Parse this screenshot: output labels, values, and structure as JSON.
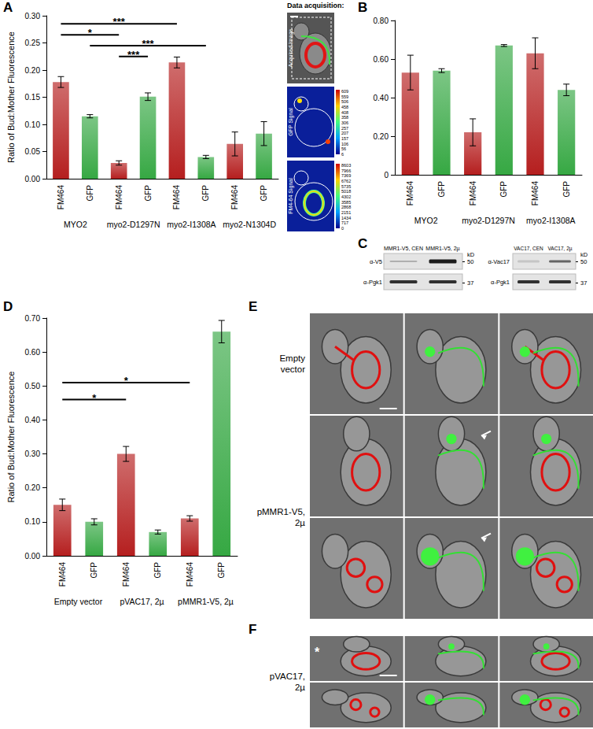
{
  "chart_data": [
    {
      "panel_label": "A",
      "type": "bar",
      "y_label": "Ratio of Bud:Mother Fluorescence",
      "categories": [
        "FM464",
        "GFP",
        "FM464",
        "GFP",
        "FM464",
        "GFP",
        "FM464",
        "GFP"
      ],
      "groups": [
        "MYO2",
        "myo2-D1297N",
        "myo2-I1308A",
        "myo2-N1304D"
      ],
      "values": [
        0.178,
        0.115,
        0.029,
        0.151,
        0.214,
        0.04,
        0.064,
        0.083
      ],
      "errors": [
        0.01,
        0.003,
        0.004,
        0.007,
        0.01,
        0.003,
        0.022,
        0.022
      ],
      "colors": [
        "#b51f1f",
        "#36a843",
        "#b51f1f",
        "#36a843",
        "#b51f1f",
        "#36a843",
        "#b51f1f",
        "#36a843"
      ],
      "ylim": [
        0,
        0.3
      ],
      "yticks": [
        {
          "value": 0,
          "label": "0.00"
        },
        0.05,
        {
          "value": 0.1,
          "label": "0.10"
        },
        0.15,
        {
          "value": 0.2,
          "label": "0.20"
        },
        0.25,
        {
          "value": 0.3,
          "label": "0.30"
        }
      ],
      "grid": false,
      "significance": [
        {
          "text": "***",
          "from": 0,
          "to": 4,
          "y": 0.285
        },
        {
          "text": "*",
          "from": 0,
          "to": 2,
          "y": 0.265
        },
        {
          "text": "***",
          "from": 1,
          "to": 5,
          "y": 0.245
        },
        {
          "text": "***",
          "from": 2,
          "to": 3,
          "y": 0.225
        }
      ]
    },
    {
      "panel_label": "B",
      "type": "bar",
      "categories": [
        "FM464",
        "GFP",
        "FM464",
        "GFP",
        "FM464",
        "GFP"
      ],
      "groups": [
        "MYO2",
        "myo2-D1297N",
        "myo2-I1308A"
      ],
      "values": [
        0.53,
        0.54,
        0.22,
        0.67,
        0.63,
        0.44
      ],
      "errors": [
        0.09,
        0.01,
        0.07,
        0.005,
        0.08,
        0.03
      ],
      "colors": [
        "#b51f1f",
        "#36a843",
        "#b51f1f",
        "#36a843",
        "#b51f1f",
        "#36a843"
      ],
      "ylim": [
        0,
        0.8
      ],
      "yticks": [
        0,
        {
          "value": 0.2,
          "label": "0.20"
        },
        {
          "value": 0.4,
          "label": "0.40"
        },
        {
          "value": 0.6,
          "label": "0.60"
        },
        {
          "value": 0.8,
          "label": "0.80"
        }
      ],
      "grid": false
    },
    {
      "panel_label": "D",
      "type": "bar",
      "y_label": "Ratio of Bud:Mother Fluorescence",
      "categories": [
        "FM464",
        "GFP",
        "FM464",
        "GFP",
        "FM464",
        "GFP"
      ],
      "groups": [
        "Empty vector",
        "pVAC17, 2µ",
        "pMMR1-V5, 2µ"
      ],
      "values": [
        0.15,
        0.1,
        0.3,
        0.07,
        0.11,
        0.66
      ],
      "errors": [
        0.017,
        0.009,
        0.022,
        0.006,
        0.008,
        0.033
      ],
      "colors": [
        "#b51f1f",
        "#36a843",
        "#b51f1f",
        "#36a843",
        "#b51f1f",
        "#36a843"
      ],
      "ylim": [
        0,
        0.7
      ],
      "yticks": [
        {
          "value": 0,
          "label": "0.00"
        },
        {
          "value": 0.1,
          "label": "0.10"
        },
        {
          "value": 0.2,
          "label": "0.20"
        },
        {
          "value": 0.3,
          "label": "0.30"
        },
        {
          "value": 0.4,
          "label": "0.40"
        },
        {
          "value": 0.5,
          "label": "0.50"
        },
        {
          "value": 0.6,
          "label": "0.60"
        },
        {
          "value": 0.7,
          "label": "0.70"
        }
      ],
      "grid": false,
      "significance": [
        {
          "text": "*",
          "from": 0,
          "to": 4,
          "y": 0.51
        },
        {
          "text": "*",
          "from": 0,
          "to": 2,
          "y": 0.46
        }
      ]
    }
  ],
  "data_acquisition": {
    "title": "Data acquisition:",
    "tiles": [
      "Acquired Image",
      "GFP Signal",
      "FM4-64 Signal"
    ],
    "colorbar_ticks": [
      [
        609,
        559,
        506,
        458,
        408,
        358,
        306,
        257,
        207,
        157,
        106,
        56,
        6
      ],
      [
        8603,
        7966,
        7369,
        6762,
        5735,
        5018,
        4302,
        3585,
        2868,
        2151,
        1434,
        717,
        0
      ]
    ]
  },
  "blots": {
    "panel_label": "C",
    "blots": [
      {
        "lanes": [
          "MMR1-V5, CEN",
          "MMR1-V5, 2µ"
        ],
        "probes": [
          "α-V5",
          "α-Pgk1"
        ],
        "unit": "kD",
        "markers": [
          50,
          37
        ]
      },
      {
        "lanes": [
          "VAC17, CEN",
          "VAC17, 2µ"
        ],
        "probes": [
          "α-Vac17",
          "α-Pgk1"
        ],
        "unit": "kD",
        "markers": [
          50,
          37
        ]
      }
    ]
  },
  "micrographs": [
    {
      "panel_label": "E",
      "groups": [
        {
          "label": "Empty vector",
          "rows": 1
        },
        {
          "label": "pMMR1-V5, 2µ",
          "rows": 2
        }
      ]
    },
    {
      "panel_label": "F",
      "groups": [
        {
          "label": "pVAC17, 2µ",
          "rows": 2
        }
      ],
      "marks": [
        "*"
      ]
    }
  ]
}
